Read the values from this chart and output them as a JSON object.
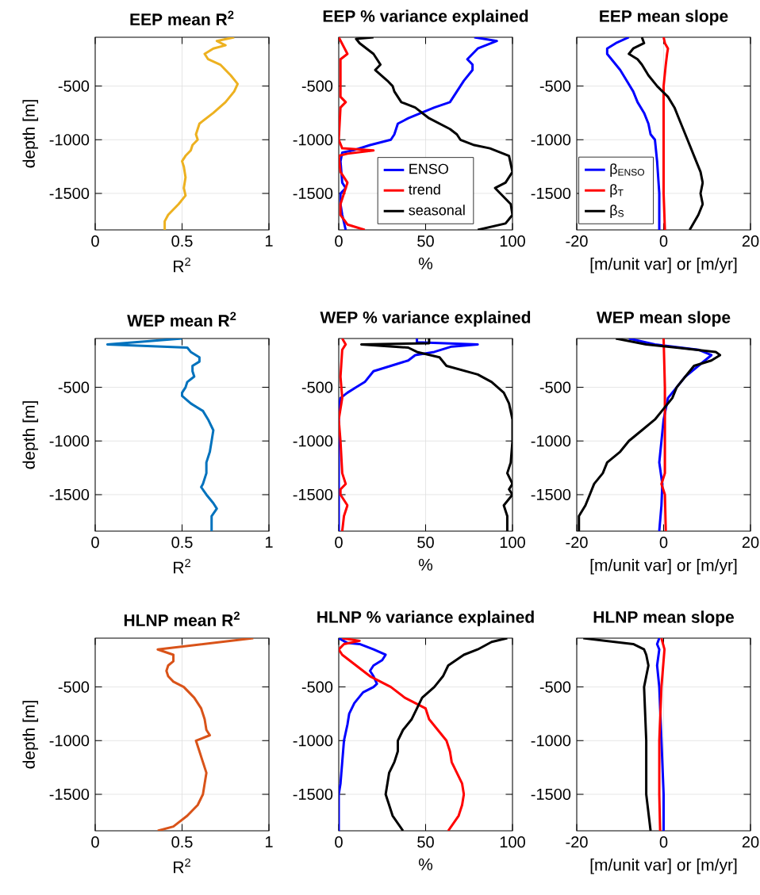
{
  "chart_data": [
    {
      "type": "line",
      "title": "EEP mean R$^{2}$",
      "xlabel": "R$^{2}$",
      "ylabel": "depth [m]",
      "xlim": [
        0,
        1
      ],
      "xticks": [
        0,
        0.5,
        1
      ],
      "ylim": [
        -1840,
        -45
      ],
      "yticks": [
        -1500,
        -1000,
        -500
      ],
      "grid": true,
      "series": [
        {
          "color": "#edb120",
          "x": [
            0.8,
            0.7,
            0.75,
            0.68,
            0.63,
            0.65,
            0.72,
            0.78,
            0.82,
            0.8,
            0.75,
            0.68,
            0.6,
            0.58,
            0.59,
            0.56,
            0.55,
            0.52,
            0.5,
            0.51,
            0.52,
            0.51,
            0.52,
            0.48,
            0.42,
            0.4,
            0.4
          ],
          "values": [
            -45,
            -80,
            -120,
            -150,
            -200,
            -250,
            -300,
            -400,
            -480,
            -550,
            -650,
            -750,
            -850,
            -950,
            -1000,
            -1050,
            -1100,
            -1150,
            -1200,
            -1250,
            -1350,
            -1450,
            -1520,
            -1600,
            -1700,
            -1760,
            -1840
          ]
        }
      ]
    },
    {
      "type": "line",
      "title": "EEP % variance explained",
      "xlabel": "%",
      "xlim": [
        0,
        100
      ],
      "xticks": [
        0,
        50,
        100
      ],
      "ylim": [
        -1840,
        -45
      ],
      "yticks": [
        -1500,
        -1000,
        -500
      ],
      "grid": true,
      "legend": "bottom",
      "series": [
        {
          "name": "ENSO",
          "color": "#0000ff",
          "x": [
            78,
            91,
            80,
            74,
            77,
            77,
            72,
            68,
            64,
            55,
            40,
            34,
            32,
            30,
            18,
            8,
            2,
            1,
            2,
            4,
            1,
            1,
            2,
            4
          ],
          "values": [
            -45,
            -80,
            -150,
            -250,
            -300,
            -350,
            -450,
            -550,
            -650,
            -700,
            -800,
            -850,
            -950,
            -1000,
            -1050,
            -1100,
            -1120,
            -1200,
            -1400,
            -1450,
            -1500,
            -1600,
            -1700,
            -1840
          ]
        },
        {
          "name": "trend",
          "color": "#ff0000",
          "x": [
            0,
            5,
            1,
            1,
            4,
            1,
            0,
            2,
            20,
            5,
            0,
            1,
            5,
            3,
            1,
            1,
            5,
            15
          ],
          "values": [
            -45,
            -200,
            -250,
            -600,
            -650,
            -700,
            -1000,
            -1080,
            -1100,
            -1130,
            -1150,
            -1300,
            -1400,
            -1500,
            -1600,
            -1700,
            -1790,
            -1840
          ]
        },
        {
          "name": "seasonal",
          "color": "#000000",
          "x": [
            20,
            10,
            12,
            20,
            22,
            24,
            21,
            28,
            31,
            32,
            36,
            44,
            52,
            64,
            68,
            70,
            78,
            87,
            98,
            100,
            96,
            90,
            93,
            99,
            100,
            96,
            80
          ],
          "values": [
            -45,
            -60,
            -100,
            -200,
            -250,
            -300,
            -350,
            -450,
            -500,
            -550,
            -650,
            -700,
            -800,
            -900,
            -950,
            -1000,
            -1050,
            -1080,
            -1150,
            -1300,
            -1400,
            -1450,
            -1500,
            -1600,
            -1700,
            -1780,
            -1840
          ]
        }
      ]
    },
    {
      "type": "line",
      "title": "EEP mean slope",
      "xlabel": "[m/unit var] or [m/yr]",
      "xlim": [
        -20,
        20
      ],
      "xticks": [
        -20,
        0,
        20
      ],
      "ylim": [
        -1840,
        -45
      ],
      "yticks": [
        -1500,
        -1000,
        -500
      ],
      "grid": true,
      "legend": "bottom left",
      "series": [
        {
          "name": "β$_{ENSO}$",
          "color": "#0000ff",
          "x": [
            -8,
            -11,
            -13,
            -13,
            -12,
            -10,
            -8.5,
            -7,
            -6,
            -4.5,
            -3.5,
            -3,
            -2,
            -1.5,
            -1,
            -1
          ],
          "values": [
            -45,
            -100,
            -150,
            -200,
            -250,
            -350,
            -450,
            -550,
            -650,
            -750,
            -850,
            -950,
            -1000,
            -1200,
            -1500,
            -1840
          ]
        },
        {
          "name": "β$_{T}$",
          "color": "#ff0000",
          "x": [
            0,
            0.3,
            1,
            0.8,
            0.5,
            0,
            0,
            0,
            0,
            0.3
          ],
          "values": [
            -45,
            -100,
            -150,
            -200,
            -300,
            -500,
            -800,
            -1000,
            -1500,
            -1840
          ]
        },
        {
          "name": "β$_{S}$",
          "color": "#000000",
          "x": [
            -5,
            -4.5,
            -7,
            -8,
            -6,
            -5,
            -3.5,
            -1.5,
            1,
            2.5,
            3.5,
            4.5,
            5.5,
            6.5,
            7.5,
            8.5,
            9,
            8.5,
            9,
            8,
            6
          ],
          "values": [
            -45,
            -100,
            -150,
            -200,
            -250,
            -300,
            -400,
            -500,
            -600,
            -700,
            -800,
            -900,
            -1000,
            -1100,
            -1200,
            -1300,
            -1400,
            -1500,
            -1600,
            -1700,
            -1840
          ]
        }
      ]
    },
    {
      "type": "line",
      "title": "WEP mean R$^{2}$",
      "xlabel": "R$^{2}$",
      "ylabel": "depth [m]",
      "xlim": [
        0,
        1
      ],
      "xticks": [
        0,
        0.5,
        1
      ],
      "ylim": [
        -1840,
        -45
      ],
      "yticks": [
        -1500,
        -1000,
        -500
      ],
      "grid": true,
      "series": [
        {
          "color": "#0072bd",
          "x": [
            0.5,
            0.07,
            0.53,
            0.55,
            0.6,
            0.6,
            0.56,
            0.56,
            0.57,
            0.53,
            0.52,
            0.5,
            0.5,
            0.55,
            0.62,
            0.65,
            0.68,
            0.67,
            0.66,
            0.64,
            0.64,
            0.62,
            0.61,
            0.64,
            0.68,
            0.7,
            0.67,
            0.67
          ],
          "values": [
            -45,
            -100,
            -130,
            -170,
            -220,
            -260,
            -300,
            -350,
            -400,
            -450,
            -500,
            -550,
            -580,
            -650,
            -720,
            -800,
            -900,
            -1000,
            -1100,
            -1200,
            -1300,
            -1400,
            -1430,
            -1500,
            -1580,
            -1630,
            -1700,
            -1840
          ]
        }
      ]
    },
    {
      "type": "line",
      "title": "WEP % variance explained",
      "xlabel": "%",
      "xlim": [
        0,
        100
      ],
      "xticks": [
        0,
        50,
        100
      ],
      "ylim": [
        -1840,
        -45
      ],
      "yticks": [
        -1500,
        -1000,
        -500
      ],
      "grid": true,
      "series": [
        {
          "color": "#0000ff",
          "x": [
            45,
            45,
            80,
            65,
            55,
            44,
            40,
            30,
            20,
            15,
            10,
            5,
            1,
            0,
            0
          ],
          "values": [
            -45,
            -80,
            -100,
            -120,
            -170,
            -200,
            -250,
            -300,
            -350,
            -450,
            -500,
            -550,
            -600,
            -700,
            -1840
          ]
        },
        {
          "color": "#ff0000",
          "x": [
            2,
            4,
            2,
            1,
            2,
            0,
            1,
            2,
            4,
            1,
            1,
            5,
            3,
            2
          ],
          "values": [
            -45,
            -100,
            -150,
            -400,
            -600,
            -800,
            -1000,
            -1300,
            -1400,
            -1450,
            -1500,
            -1600,
            -1700,
            -1840
          ]
        },
        {
          "color": "#000000",
          "x": [
            52,
            52,
            13,
            40,
            45,
            58,
            62,
            80,
            88,
            95,
            98,
            100,
            100,
            99,
            97,
            100,
            98,
            100,
            95,
            97,
            97
          ],
          "values": [
            -45,
            -90,
            -100,
            -130,
            -170,
            -220,
            -300,
            -380,
            -450,
            -550,
            -650,
            -800,
            -1000,
            -1200,
            -1300,
            -1400,
            -1450,
            -1500,
            -1600,
            -1700,
            -1840
          ]
        }
      ]
    },
    {
      "type": "line",
      "title": "WEP mean slope",
      "xlabel": "[m/unit var] or [m/yr]",
      "xlim": [
        -20,
        20
      ],
      "xticks": [
        -20,
        0,
        20
      ],
      "ylim": [
        -1840,
        -45
      ],
      "yticks": [
        -1500,
        -1000,
        -500
      ],
      "grid": true,
      "series": [
        {
          "color": "#0000ff",
          "x": [
            -8,
            -2,
            8,
            11,
            8,
            5,
            3,
            1,
            0,
            -0.5,
            -1,
            -0.3,
            -0.5,
            -1
          ],
          "values": [
            -45,
            -100,
            -150,
            -200,
            -300,
            -400,
            -500,
            -600,
            -800,
            -1000,
            -1200,
            -1400,
            -1600,
            -1840
          ]
        },
        {
          "color": "#ff0000",
          "x": [
            0,
            0.3,
            0.3,
            -0.5,
            0.3,
            0.5
          ],
          "values": [
            -45,
            -500,
            -1300,
            -1400,
            -1500,
            -1840
          ]
        },
        {
          "color": "#000000",
          "x": [
            -11,
            -4,
            3,
            12,
            13,
            11,
            7,
            5,
            3,
            2,
            0,
            -2,
            -5,
            -8,
            -10,
            -13,
            -14,
            -16,
            -17,
            -18,
            -19.5,
            -19.5
          ],
          "values": [
            -45,
            -100,
            -130,
            -170,
            -200,
            -250,
            -300,
            -400,
            -500,
            -600,
            -700,
            -800,
            -900,
            -1000,
            -1100,
            -1200,
            -1300,
            -1400,
            -1500,
            -1600,
            -1700,
            -1840
          ]
        }
      ]
    },
    {
      "type": "line",
      "title": "HLNP mean R$^{2}$",
      "xlabel": "R$^{2}$",
      "ylabel": "depth [m]",
      "xlim": [
        0,
        1
      ],
      "xticks": [
        0,
        0.5,
        1
      ],
      "ylim": [
        -1840,
        -45
      ],
      "yticks": [
        -1500,
        -1000,
        -500
      ],
      "grid": true,
      "series": [
        {
          "color": "#d95319",
          "x": [
            0.91,
            0.36,
            0.45,
            0.45,
            0.42,
            0.41,
            0.42,
            0.45,
            0.51,
            0.57,
            0.61,
            0.63,
            0.64,
            0.66,
            0.58,
            0.6,
            0.62,
            0.64,
            0.63,
            0.62,
            0.59,
            0.53,
            0.45,
            0.36
          ],
          "values": [
            -45,
            -150,
            -200,
            -260,
            -300,
            -350,
            -400,
            -450,
            -500,
            -600,
            -700,
            -800,
            -900,
            -950,
            -1000,
            -1100,
            -1200,
            -1300,
            -1400,
            -1500,
            -1600,
            -1700,
            -1800,
            -1840
          ]
        }
      ]
    },
    {
      "type": "line",
      "title": "HLNP % variance explained",
      "xlabel": "%",
      "xlim": [
        0,
        100
      ],
      "xticks": [
        0,
        50,
        100
      ],
      "ylim": [
        -1840,
        -45
      ],
      "yticks": [
        -1500,
        -1000,
        -500
      ],
      "grid": true,
      "series": [
        {
          "color": "#0000ff",
          "x": [
            0,
            5,
            12,
            20,
            27,
            25,
            20,
            18,
            20,
            22,
            20,
            14,
            9,
            6,
            5,
            3,
            2,
            1,
            0,
            0
          ],
          "values": [
            -45,
            -90,
            -100,
            -150,
            -200,
            -250,
            -300,
            -350,
            -400,
            -470,
            -500,
            -550,
            -650,
            -750,
            -850,
            -1000,
            -1200,
            -1400,
            -1500,
            -1840
          ]
        },
        {
          "color": "#ff0000",
          "x": [
            2,
            12,
            3,
            0,
            2,
            10,
            18,
            24,
            30,
            38,
            50,
            52,
            57,
            62,
            64,
            65,
            68,
            71,
            72,
            71,
            69,
            63
          ],
          "values": [
            -45,
            -70,
            -100,
            -150,
            -200,
            -300,
            -400,
            -450,
            -500,
            -600,
            -700,
            -800,
            -900,
            -1000,
            -1100,
            -1200,
            -1300,
            -1400,
            -1500,
            -1600,
            -1700,
            -1840
          ]
        },
        {
          "color": "#000000",
          "x": [
            97,
            88,
            80,
            72,
            63,
            60,
            55,
            48,
            45,
            42,
            37,
            34,
            34,
            32,
            29,
            28,
            27,
            29,
            31,
            37
          ],
          "values": [
            -45,
            -80,
            -150,
            -200,
            -300,
            -400,
            -500,
            -600,
            -700,
            -800,
            -900,
            -1000,
            -1100,
            -1200,
            -1300,
            -1400,
            -1500,
            -1600,
            -1700,
            -1840
          ]
        }
      ]
    },
    {
      "type": "line",
      "title": "HLNP mean slope",
      "xlabel": "[m/unit var] or [m/yr]",
      "xlim": [
        -20,
        20
      ],
      "xticks": [
        -20,
        0,
        20
      ],
      "ylim": [
        -1840,
        -45
      ],
      "yticks": [
        -1500,
        -1000,
        -500
      ],
      "grid": true,
      "series": [
        {
          "color": "#0000ff",
          "x": [
            -1,
            -1.5,
            -1,
            -1.5,
            -1,
            -0.5,
            0,
            0
          ],
          "values": [
            -45,
            -100,
            -150,
            -300,
            -500,
            -1000,
            -1500,
            -1840
          ]
        },
        {
          "color": "#ff0000",
          "x": [
            -0.5,
            0.2,
            -0.5,
            -1,
            -1,
            -0.8
          ],
          "values": [
            -45,
            -150,
            -500,
            -1000,
            -1500,
            -1840
          ]
        },
        {
          "color": "#000000",
          "x": [
            -18.5,
            -7,
            -4.5,
            -4,
            -3.5,
            -4,
            -4.5,
            -4,
            -4,
            -3
          ],
          "values": [
            -45,
            -100,
            -150,
            -200,
            -300,
            -400,
            -500,
            -1000,
            -1500,
            -1840
          ]
        }
      ]
    }
  ]
}
